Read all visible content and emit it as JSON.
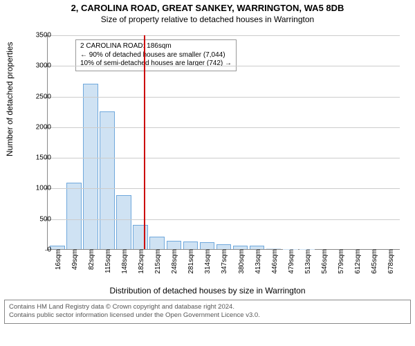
{
  "title": "2, CAROLINA ROAD, GREAT SANKEY, WARRINGTON, WA5 8DB",
  "subtitle": "Size of property relative to detached houses in Warrington",
  "ylabel": "Number of detached properties",
  "xlabel": "Distribution of detached houses by size in Warrington",
  "footer": {
    "line1": "Contains HM Land Registry data © Crown copyright and database right 2024.",
    "line2": "Contains public sector information licensed under the Open Government Licence v3.0."
  },
  "annotation": {
    "line1": "2 CAROLINA ROAD: 186sqm",
    "line2": "← 90% of detached houses are smaller (7,044)",
    "line3": "10% of semi-detached houses are larger (742) →",
    "bg": "#ffffff"
  },
  "chart": {
    "type": "histogram",
    "ylim": [
      0,
      3500
    ],
    "ytick_step": 500,
    "grid_color": "#cccccc",
    "axis_color": "#888888",
    "bar_fill": "#cfe2f3",
    "bar_stroke": "#6fa8dc",
    "refline_color": "#cc0000",
    "refline_x_sqm": 186,
    "x_min": 16,
    "x_bin_width": 33,
    "categories": [
      "16sqm",
      "49sqm",
      "82sqm",
      "115sqm",
      "148sqm",
      "182sqm",
      "215sqm",
      "248sqm",
      "281sqm",
      "314sqm",
      "347sqm",
      "380sqm",
      "413sqm",
      "446sqm",
      "479sqm",
      "513sqm",
      "546sqm",
      "579sqm",
      "612sqm",
      "645sqm",
      "678sqm"
    ],
    "values": [
      60,
      1080,
      2700,
      2250,
      880,
      400,
      200,
      140,
      120,
      110,
      80,
      60,
      60,
      10,
      5,
      5,
      0,
      0,
      0,
      0,
      0
    ]
  },
  "font": {
    "title_size": 13,
    "label_size": 12,
    "tick_size": 10
  }
}
